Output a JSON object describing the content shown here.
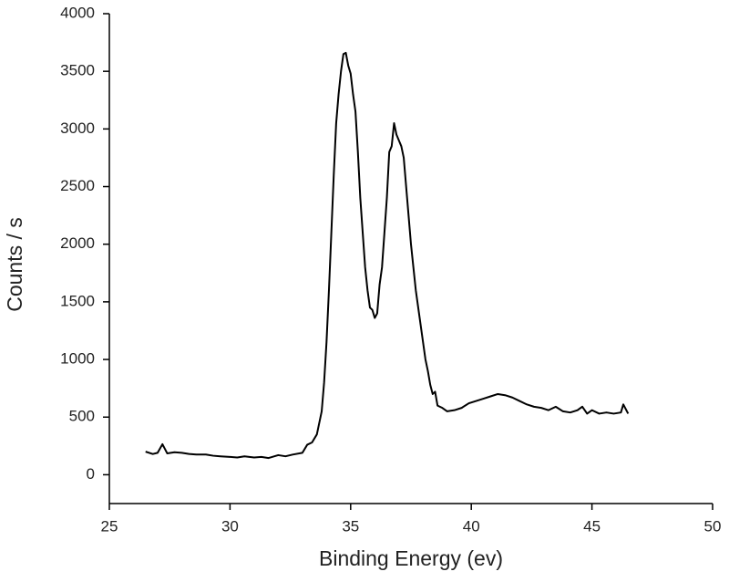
{
  "chart_data": {
    "type": "line",
    "x_label": "Binding Energy (ev)",
    "y_label": "Counts / s",
    "xlim": [
      25,
      50
    ],
    "xticks": [
      25,
      30,
      35,
      40,
      45,
      50
    ],
    "ylim": [
      -250,
      4000
    ],
    "yticks": [
      0,
      500,
      1000,
      1500,
      2000,
      2500,
      3000,
      3500,
      4000
    ],
    "grid": false,
    "series": [
      {
        "color": "#000000",
        "x": [
          26.5,
          26.8,
          27.0,
          27.2,
          27.4,
          27.7,
          28.0,
          28.3,
          28.6,
          29.0,
          29.3,
          29.6,
          30.0,
          30.3,
          30.6,
          31.0,
          31.3,
          31.6,
          32.0,
          32.3,
          32.6,
          33.0,
          33.2,
          33.4,
          33.6,
          33.8,
          33.9,
          34.0,
          34.1,
          34.2,
          34.3,
          34.4,
          34.5,
          34.6,
          34.7,
          34.8,
          34.9,
          35.0,
          35.1,
          35.2,
          35.3,
          35.4,
          35.5,
          35.6,
          35.7,
          35.8,
          35.9,
          36.0,
          36.1,
          36.2,
          36.3,
          36.4,
          36.5,
          36.6,
          36.7,
          36.8,
          36.9,
          37.0,
          37.1,
          37.2,
          37.3,
          37.4,
          37.5,
          37.6,
          37.7,
          37.8,
          37.9,
          38.0,
          38.1,
          38.2,
          38.3,
          38.4,
          38.5,
          38.6,
          38.8,
          39.0,
          39.3,
          39.6,
          39.9,
          40.2,
          40.5,
          40.8,
          41.1,
          41.4,
          41.7,
          42.0,
          42.3,
          42.6,
          42.9,
          43.2,
          43.5,
          43.8,
          44.1,
          44.4,
          44.6,
          44.8,
          45.0,
          45.3,
          45.6,
          45.9,
          46.2,
          46.3,
          46.5
        ],
        "values": [
          200,
          180,
          190,
          265,
          185,
          195,
          190,
          180,
          175,
          175,
          165,
          160,
          155,
          150,
          160,
          150,
          155,
          145,
          170,
          160,
          175,
          190,
          260,
          280,
          350,
          550,
          800,
          1150,
          1600,
          2100,
          2600,
          3050,
          3300,
          3500,
          3650,
          3660,
          3550,
          3480,
          3300,
          3150,
          2800,
          2400,
          2100,
          1800,
          1600,
          1450,
          1430,
          1360,
          1400,
          1650,
          1800,
          2100,
          2400,
          2800,
          2850,
          3050,
          2950,
          2900,
          2850,
          2750,
          2500,
          2250,
          2000,
          1800,
          1600,
          1450,
          1300,
          1150,
          1000,
          900,
          780,
          700,
          720,
          600,
          580,
          550,
          560,
          580,
          620,
          640,
          660,
          680,
          700,
          690,
          670,
          640,
          610,
          590,
          580,
          560,
          590,
          550,
          540,
          560,
          590,
          530,
          560,
          530,
          540,
          530,
          540,
          610,
          530
        ]
      }
    ]
  }
}
